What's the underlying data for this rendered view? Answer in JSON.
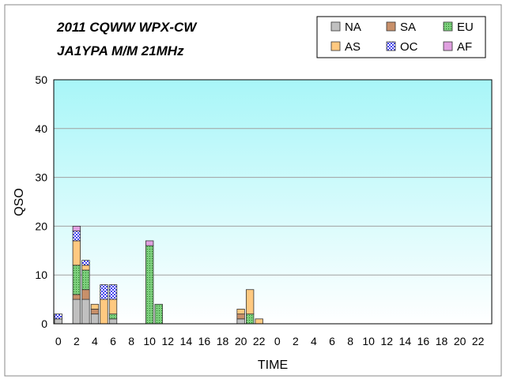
{
  "chart_data": {
    "type": "bar",
    "stacked": true,
    "title": "2011 CQWW WPX-CW",
    "subtitle": "JA1YPA  M/M  21MHz",
    "xlabel": "TIME",
    "ylabel": "QSO",
    "ylim": [
      0,
      50
    ],
    "yticks": [
      "0",
      "10",
      "20",
      "30",
      "40",
      "50"
    ],
    "xticks": [
      "0",
      "2",
      "4",
      "6",
      "8",
      "10",
      "12",
      "14",
      "16",
      "18",
      "20",
      "22",
      "0",
      "2",
      "4",
      "6",
      "8",
      "10",
      "12",
      "14",
      "16",
      "18",
      "20",
      "22"
    ],
    "grid": true,
    "legend_position": "top-right",
    "hours": 48,
    "series": [
      {
        "name": "NA",
        "color": "#c0c0c0",
        "pattern": "solid",
        "values": [
          1,
          0,
          5,
          5,
          2,
          0,
          1,
          0,
          0,
          0,
          0,
          0,
          0,
          0,
          0,
          0,
          0,
          0,
          0,
          0,
          1,
          0,
          0,
          0,
          0,
          0,
          0,
          0,
          0,
          0,
          0,
          0,
          0,
          0,
          0,
          0,
          0,
          0,
          0,
          0,
          0,
          0,
          0,
          0,
          0,
          0,
          0,
          0
        ]
      },
      {
        "name": "SA",
        "color": "#c8906a",
        "pattern": "solid",
        "values": [
          0,
          0,
          1,
          2,
          1,
          0,
          0,
          0,
          0,
          0,
          0,
          0,
          0,
          0,
          0,
          0,
          0,
          0,
          0,
          0,
          1,
          0,
          0,
          0,
          0,
          0,
          0,
          0,
          0,
          0,
          0,
          0,
          0,
          0,
          0,
          0,
          0,
          0,
          0,
          0,
          0,
          0,
          0,
          0,
          0,
          0,
          0,
          0
        ]
      },
      {
        "name": "EU",
        "color": "#7ccf7c",
        "pattern": "dots",
        "values": [
          0,
          0,
          6,
          4,
          0,
          0,
          1,
          0,
          0,
          0,
          16,
          4,
          0,
          0,
          0,
          0,
          0,
          0,
          0,
          0,
          0,
          2,
          0,
          0,
          0,
          0,
          0,
          0,
          0,
          0,
          0,
          0,
          0,
          0,
          0,
          0,
          0,
          0,
          0,
          0,
          0,
          0,
          0,
          0,
          0,
          0,
          0,
          0
        ]
      },
      {
        "name": "AS",
        "color": "#ffc980",
        "pattern": "solid",
        "values": [
          0,
          0,
          5,
          1,
          1,
          5,
          3,
          0,
          0,
          0,
          0,
          0,
          0,
          0,
          0,
          0,
          0,
          0,
          0,
          0,
          1,
          5,
          1,
          0,
          0,
          0,
          0,
          0,
          0,
          0,
          0,
          0,
          0,
          0,
          0,
          0,
          0,
          0,
          0,
          0,
          0,
          0,
          0,
          0,
          0,
          0,
          0,
          0
        ]
      },
      {
        "name": "OC",
        "color": "#6a6aff",
        "pattern": "checker",
        "values": [
          1,
          0,
          2,
          1,
          0,
          3,
          3,
          0,
          0,
          0,
          0,
          0,
          0,
          0,
          0,
          0,
          0,
          0,
          0,
          0,
          0,
          0,
          0,
          0,
          0,
          0,
          0,
          0,
          0,
          0,
          0,
          0,
          0,
          0,
          0,
          0,
          0,
          0,
          0,
          0,
          0,
          0,
          0,
          0,
          0,
          0,
          0,
          0
        ]
      },
      {
        "name": "AF",
        "color": "#e0a0e0",
        "pattern": "solid",
        "values": [
          0,
          0,
          1,
          0,
          0,
          0,
          0,
          0,
          0,
          0,
          1,
          0,
          0,
          0,
          0,
          0,
          0,
          0,
          0,
          0,
          0,
          0,
          0,
          0,
          0,
          0,
          0,
          0,
          0,
          0,
          0,
          0,
          0,
          0,
          0,
          0,
          0,
          0,
          0,
          0,
          0,
          0,
          0,
          0,
          0,
          0,
          0,
          0
        ]
      }
    ],
    "legend_order": [
      "NA",
      "SA",
      "EU",
      "AS",
      "OC",
      "AF"
    ]
  },
  "colors": {
    "plot_top": "#a8f6f8",
    "plot_bottom": "#ffffff",
    "grid": "#a0a0a0",
    "frame": "#000000"
  }
}
